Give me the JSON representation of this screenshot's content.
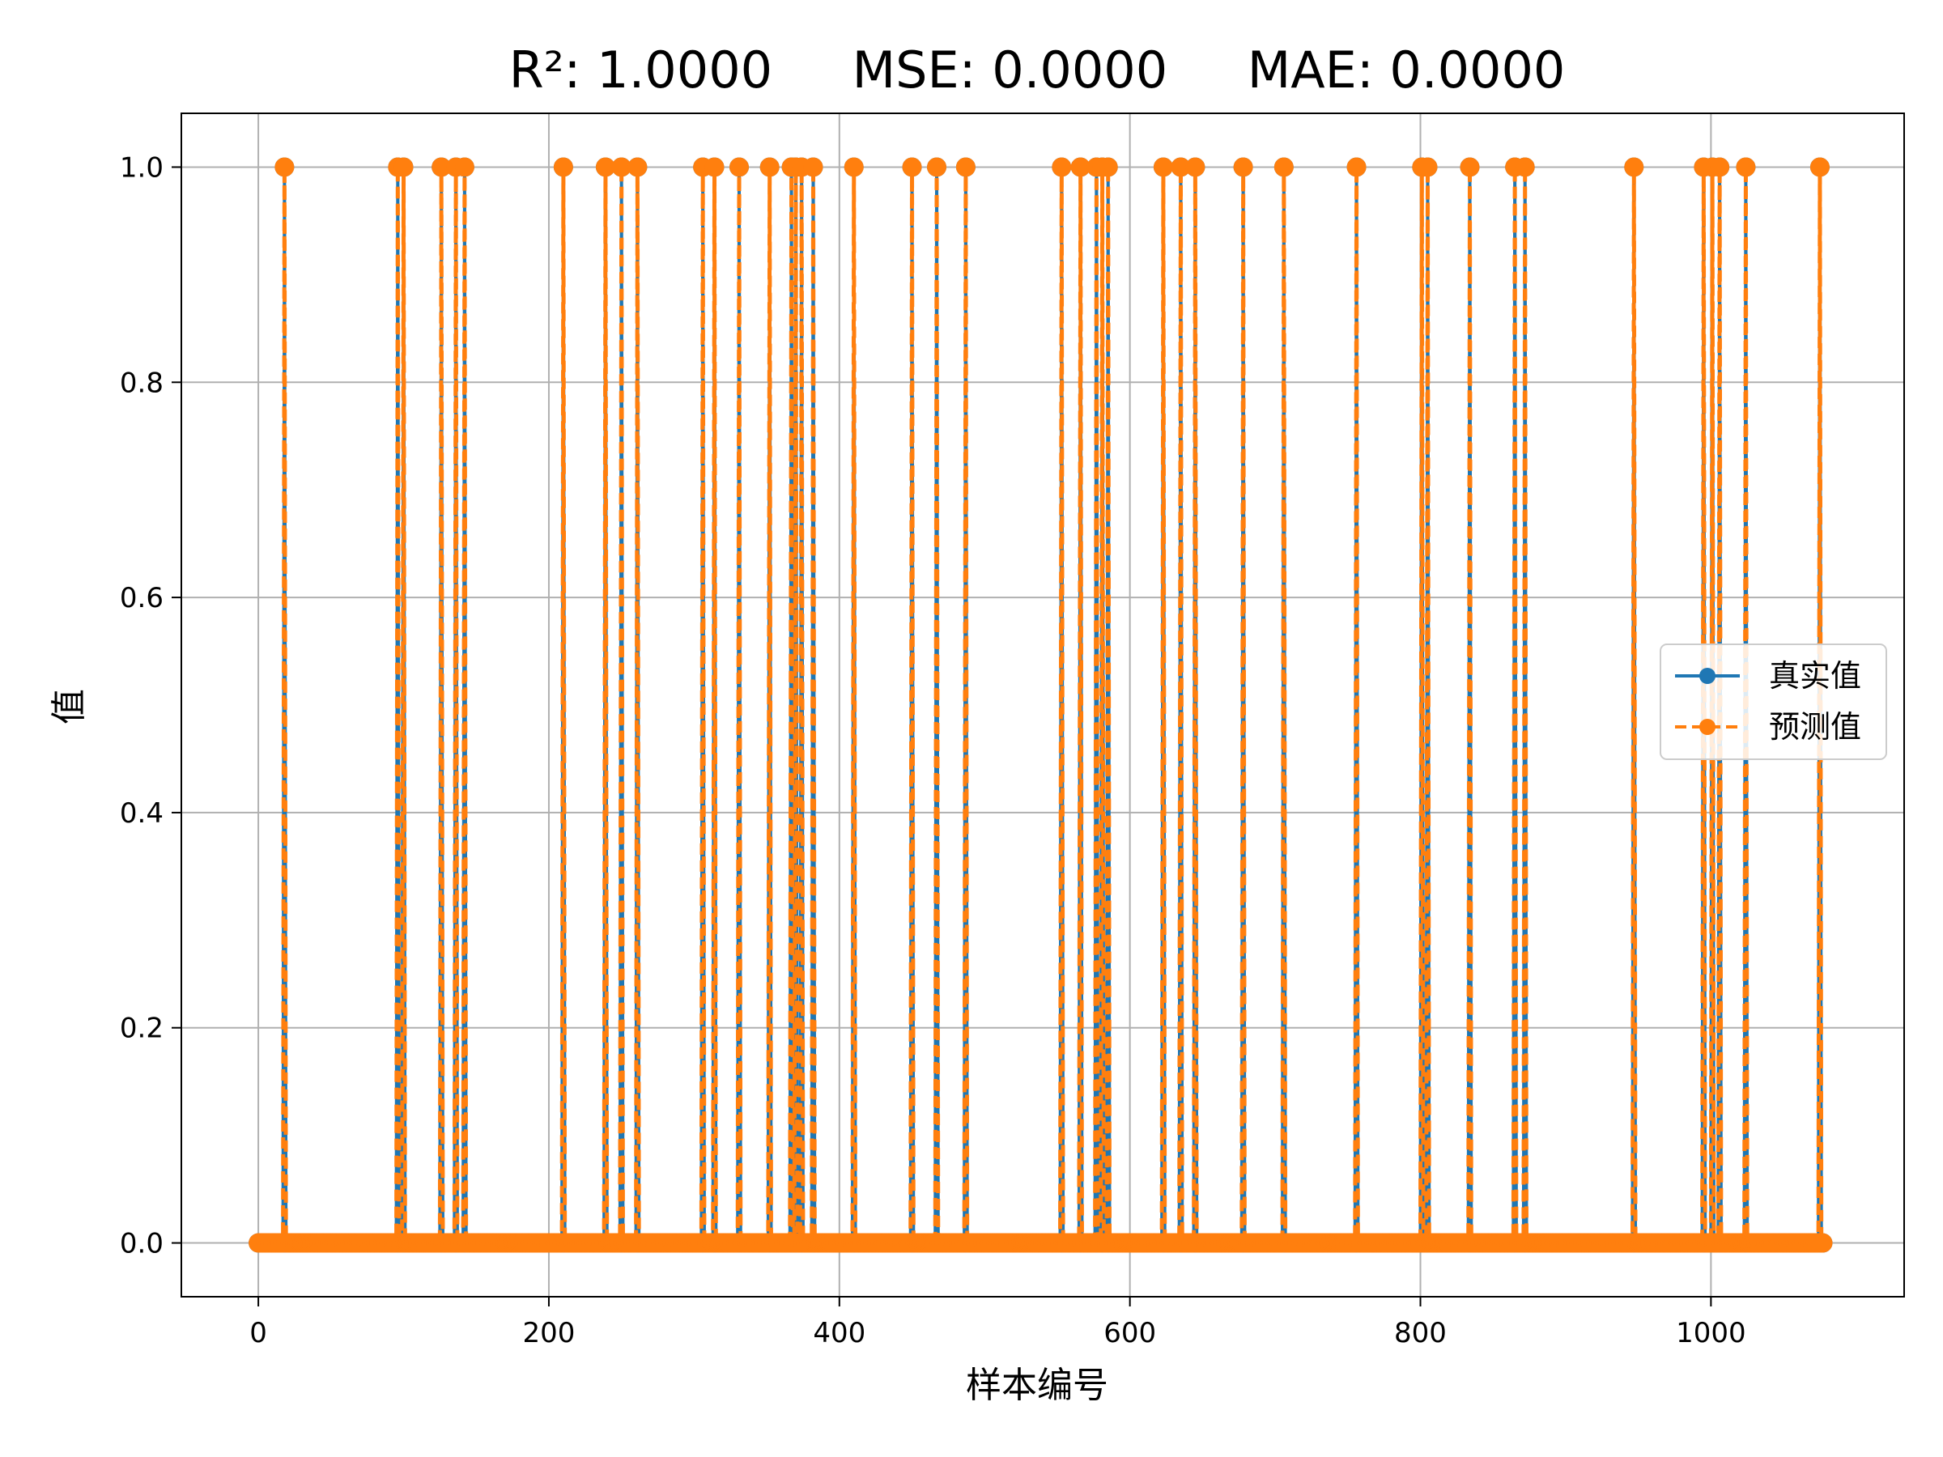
{
  "chart_data": {
    "type": "line",
    "title": "R²: 1.0000     MSE: 0.0000     MAE: 0.0000",
    "xlabel": "样本编号",
    "ylabel": "值",
    "xlim": [
      -53,
      1133
    ],
    "ylim": [
      -0.05,
      1.05
    ],
    "xticks": [
      0,
      200,
      400,
      600,
      800,
      1000
    ],
    "yticks": [
      0.0,
      0.2,
      0.4,
      0.6,
      0.8,
      1.0
    ],
    "xtick_labels": [
      "0",
      "200",
      "400",
      "600",
      "800",
      "1000"
    ],
    "ytick_labels": [
      "0.0",
      "0.2",
      "0.4",
      "0.6",
      "0.8",
      "1.0"
    ],
    "grid": true,
    "legend_position": "center-right",
    "n_points": 1078,
    "positive_indices": [
      18,
      96,
      100,
      126,
      136,
      142,
      210,
      239,
      250,
      261,
      306,
      314,
      331,
      352,
      367,
      370,
      374,
      382,
      410,
      450,
      467,
      487,
      553,
      566,
      577,
      581,
      585,
      623,
      635,
      645,
      678,
      706,
      756,
      801,
      805,
      834,
      865,
      872,
      947,
      995,
      1001,
      1006,
      1024,
      1075
    ],
    "series": [
      {
        "name": "真实值",
        "color": "#1f77b4",
        "linestyle": "solid",
        "marker": "circle",
        "values_rule": "1 at positive_indices, 0 elsewhere"
      },
      {
        "name": "预测值",
        "color": "#ff7f0e",
        "linestyle": "dashed",
        "marker": "circle",
        "values_rule": "1 at positive_indices, 0 elsewhere"
      }
    ]
  }
}
